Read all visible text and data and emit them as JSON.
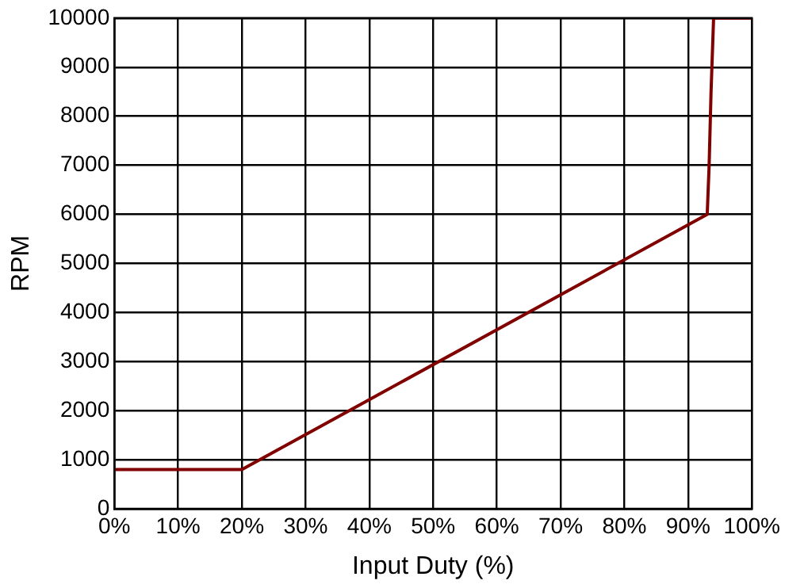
{
  "chart_data": {
    "type": "line",
    "xlabel": "Input Duty (%)",
    "ylabel": "RPM",
    "x": [
      0,
      20,
      93,
      93.3,
      93.6,
      94,
      100
    ],
    "series": [
      {
        "color": "#800000",
        "values": [
          800,
          800,
          6000,
          7000,
          8500,
          10000,
          10000
        ]
      }
    ],
    "xlim": [
      0,
      100
    ],
    "xticks": [
      {
        "value": 0,
        "label": "0%"
      },
      {
        "value": 10,
        "label": "10%"
      },
      {
        "value": 20,
        "label": "20%"
      },
      {
        "value": 30,
        "label": "30%"
      },
      {
        "value": 40,
        "label": "40%"
      },
      {
        "value": 50,
        "label": "50%"
      },
      {
        "value": 60,
        "label": "60%"
      },
      {
        "value": 70,
        "label": "70%"
      },
      {
        "value": 80,
        "label": "80%"
      },
      {
        "value": 90,
        "label": "90%"
      },
      {
        "value": 100,
        "label": "100%"
      }
    ],
    "ylim": [
      0,
      10000
    ],
    "yticks": [
      0,
      1000,
      2000,
      3000,
      4000,
      5000,
      6000,
      7000,
      8000,
      9000,
      10000
    ],
    "grid": true,
    "legend": false,
    "marker": "none",
    "line_style": "solid"
  }
}
